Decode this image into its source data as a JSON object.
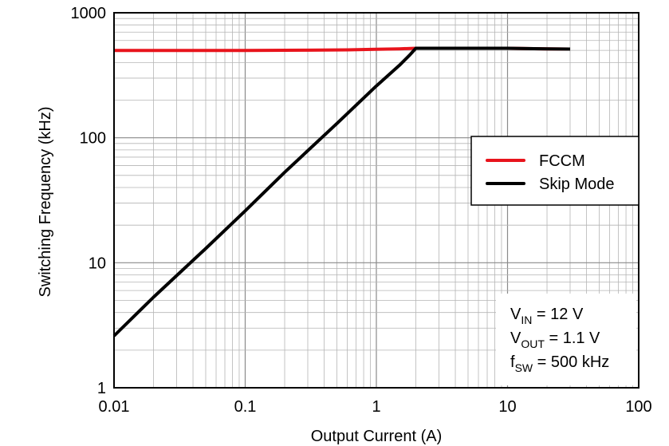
{
  "chart_data": {
    "type": "line",
    "xlabel": "Output Current (A)",
    "ylabel": "Switching Frequency (kHz)",
    "xscale": "log",
    "yscale": "log",
    "xlim": [
      0.01,
      100
    ],
    "ylim": [
      1,
      1000
    ],
    "xticks": [
      "0.01",
      "0.1",
      "1",
      "10",
      "100"
    ],
    "yticks": [
      "1",
      "10",
      "100",
      "1000"
    ],
    "grid": true,
    "legend_position": "right",
    "series": [
      {
        "name": "FCCM",
        "color": "#e8141c",
        "x": [
          0.01,
          0.1,
          0.3,
          0.6,
          1.0,
          1.5,
          2.0,
          3.0,
          5.0,
          10.0,
          20.0,
          30.0
        ],
        "y": [
          500,
          500,
          502,
          505,
          510,
          515,
          520,
          520,
          520,
          520,
          515,
          512
        ]
      },
      {
        "name": "Skip Mode",
        "color": "#000000",
        "x": [
          0.01,
          0.02,
          0.05,
          0.1,
          0.2,
          0.5,
          1.0,
          1.5,
          1.8,
          2.0,
          3.0,
          5.0,
          10.0,
          20.0,
          30.0
        ],
        "y": [
          2.6,
          5.3,
          13,
          26,
          53,
          130,
          260,
          380,
          460,
          520,
          520,
          520,
          520,
          515,
          512
        ]
      }
    ],
    "annotations": [
      {
        "main": "V",
        "sub": "IN",
        "rest": " = 12 V"
      },
      {
        "main": "V",
        "sub": "OUT",
        "rest": " = 1.1 V"
      },
      {
        "main": "f",
        "sub": "SW",
        "rest": " = 500 kHz"
      }
    ]
  }
}
